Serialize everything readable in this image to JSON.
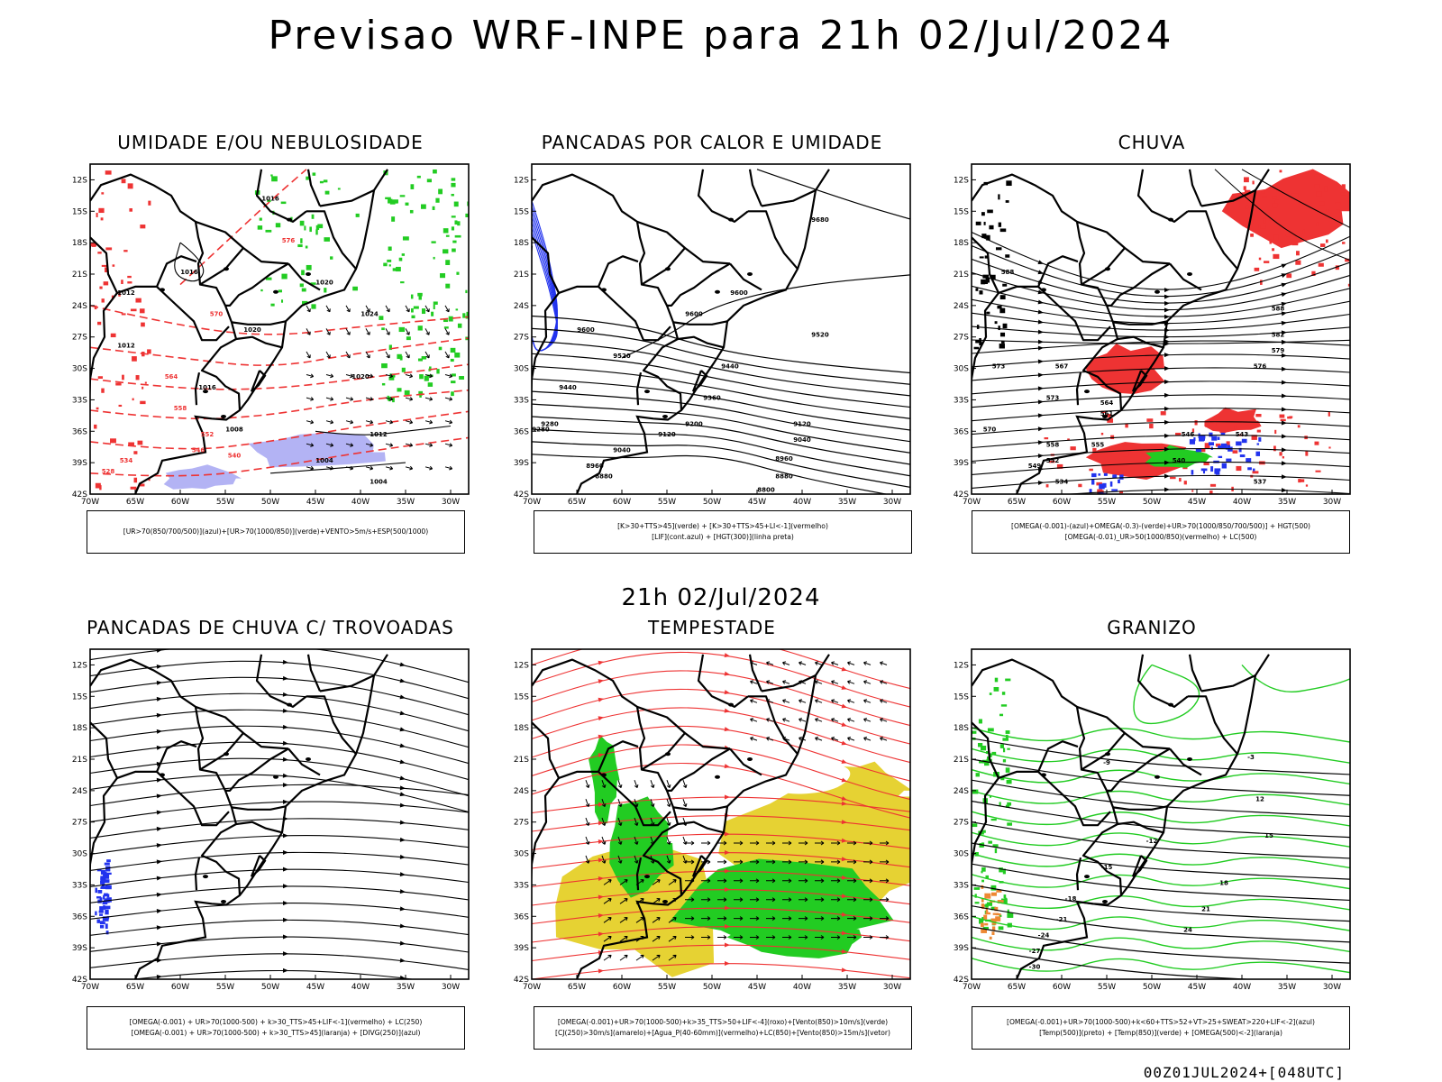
{
  "header": {
    "title": "Previsao WRF-INPE  para 21h 02/Jul/2024",
    "mid_title": "21h 02/Jul/2024",
    "footer": "00Z01JUL2024+[048UTC]"
  },
  "axes": {
    "lat_labels": [
      "12S",
      "15S",
      "18S",
      "21S",
      "24S",
      "27S",
      "30S",
      "33S",
      "36S",
      "39S",
      "42S"
    ],
    "lon_labels": [
      "70W",
      "65W",
      "60W",
      "55W",
      "50W",
      "45W",
      "40W",
      "35W",
      "30W"
    ]
  },
  "colors": {
    "blue": "#2233ee",
    "light_blue": "#a6a6f2",
    "green": "#22cc22",
    "red": "#ee3333",
    "yellow": "#e6d233",
    "orange": "#ee8833"
  },
  "panels": [
    {
      "id": "umidade",
      "title": "UMIDADE E/OU NEBULOSIDADE",
      "legend": [
        "[UR>70(850/700/500)](azul)+[UR>70(1000/850)](verde)+VENTO>5m/s+ESP(500/1000)"
      ],
      "labels": {
        "black": [
          "1016",
          "1016",
          "1012",
          "1020",
          "1024",
          "1020",
          "1012",
          "1016",
          "1020",
          "1004",
          "1004",
          "1012",
          "1008"
        ],
        "red": [
          "576",
          "570",
          "564",
          "558",
          "552",
          "546",
          "540",
          "534",
          "528"
        ]
      }
    },
    {
      "id": "pancadas-calor",
      "title": "PANCADAS POR CALOR E UMIDADE",
      "legend": [
        "[K>30+TTS>45](verde) + [K>30+TTS>45+LI<-1](vermelho)",
        "[LIF](cont.azul) + [HGT(300)](linha preta)"
      ],
      "labels": {
        "black": [
          "9680",
          "9600",
          "9600",
          "9520",
          "9520",
          "9440",
          "9440",
          "9360",
          "9280",
          "9200",
          "9120",
          "9120",
          "9040",
          "9040",
          "8960",
          "8960",
          "8880",
          "8880",
          "8800",
          "9600",
          "9280"
        ]
      }
    },
    {
      "id": "chuva",
      "title": "CHUVA",
      "legend": [
        "[OMEGA(-0.001)-(azul)+OMEGA(-0.3)-(verde)+UR>70(1000/850/700/500)] + HGT(500)",
        "[OMEGA(-0.01)_UR>50(1000/850)(vermelho) + LC(500)"
      ],
      "labels": {
        "black": [
          "588",
          "582",
          "579",
          "576",
          "573",
          "570",
          "567",
          "564",
          "561",
          "558",
          "555",
          "552",
          "549",
          "546",
          "543",
          "540",
          "537",
          "534",
          "573",
          "588"
        ]
      }
    },
    {
      "id": "trovoadas",
      "title": "PANCADAS DE CHUVA C/ TROVOADAS",
      "legend": [
        "[OMEGA(-0.001) + UR>70(1000-500) + k>30_TTS>45+LIF<-1](vermelho) + LC(250)",
        "[OMEGA(-0.001) + UR>70(1000-500) + k>30_TTS>45](laranja) + [DIVG(250)](azul)"
      ],
      "labels": {
        "black": []
      }
    },
    {
      "id": "tempestade",
      "title": "TEMPESTADE",
      "legend": [
        "[OMEGA(-0.001)+UR>70(1000-500)+k>35_TTS>50+LIF<-4](roxo)+[Vento(850)>10m/s](verde)",
        "[CJ(250)>30m/s](amarelo)+[Agua_P(40-60mm)](vermelho)+LC(850)+[Vento(850)>15m/s](vetor)"
      ],
      "labels": {
        "black": []
      }
    },
    {
      "id": "granizo",
      "title": "GRANIZO",
      "legend": [
        "[OMEGA(-0.001)+UR>70(1000-500)+k<60+TTS>52+VT>25+SWEAT>220+LIF<-2](azul)",
        "[Temp(500)](preto) + [Temp(850)](verde) + [OMEGA(500)<-2](laranja)"
      ],
      "labels": {
        "black": [
          "-9",
          "-12",
          "-15",
          "-18",
          "-21",
          "-24",
          "-27",
          "-30",
          "12",
          "15",
          "18",
          "21",
          "24",
          "-3"
        ]
      }
    }
  ]
}
